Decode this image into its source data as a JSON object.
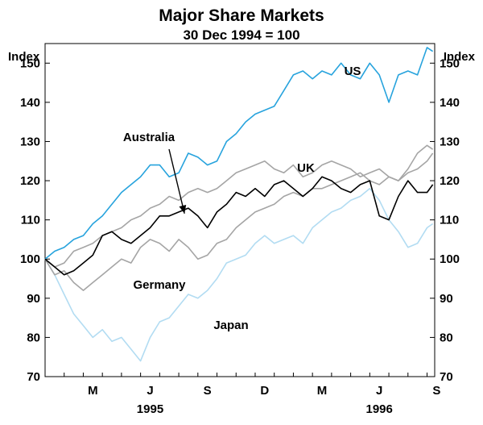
{
  "chart_data": {
    "type": "line",
    "title": "Major Share Markets",
    "subtitle": "30 Dec 1994 = 100",
    "ylabel_left": "Index",
    "ylabel_right": "Index",
    "ylim": [
      70,
      155
    ],
    "yticks": [
      70,
      80,
      90,
      100,
      110,
      120,
      130,
      140,
      150
    ],
    "xlim": [
      0,
      20.4
    ],
    "x_unit": "months since 1 Jan 1995",
    "month_ticks": [
      "M",
      "J",
      "S",
      "D",
      "M",
      "J",
      "S"
    ],
    "month_tick_positions": [
      2.5,
      5.5,
      8.5,
      11.5,
      14.5,
      17.5,
      20.5
    ],
    "year_labels": [
      {
        "label": "1995",
        "x": 5.5
      },
      {
        "label": "1996",
        "x": 17.5
      }
    ],
    "colors": {
      "US": "#27a3dd",
      "Australia": "#000000",
      "UK": "#a5a5a5",
      "Germany": "#a5a5a5",
      "Japan": "#b2dcf2",
      "axis": "#000000"
    },
    "series": [
      {
        "name": "US",
        "label": "US",
        "x": [
          0,
          0.5,
          1,
          1.5,
          2,
          2.5,
          3,
          3.5,
          4,
          4.5,
          5,
          5.5,
          6,
          6.5,
          7,
          7.5,
          8,
          8.5,
          9,
          9.5,
          10,
          10.5,
          11,
          11.5,
          12,
          12.5,
          13,
          13.5,
          14,
          14.5,
          15,
          15.5,
          16,
          16.5,
          17,
          17.5,
          18,
          18.5,
          19,
          19.5,
          20,
          20.3
        ],
        "values": [
          100,
          102,
          103,
          105,
          106,
          109,
          111,
          114,
          117,
          119,
          121,
          124,
          124,
          121,
          122,
          127,
          126,
          124,
          125,
          130,
          132,
          135,
          137,
          138,
          139,
          143,
          147,
          148,
          146,
          148,
          147,
          150,
          147,
          146,
          150,
          147,
          140,
          147,
          148,
          147,
          154,
          153
        ]
      },
      {
        "name": "UK",
        "label": "UK",
        "x": [
          0,
          0.5,
          1,
          1.5,
          2,
          2.5,
          3,
          3.5,
          4,
          4.5,
          5,
          5.5,
          6,
          6.5,
          7,
          7.5,
          8,
          8.5,
          9,
          9.5,
          10,
          10.5,
          11,
          11.5,
          12,
          12.5,
          13,
          13.5,
          14,
          14.5,
          15,
          15.5,
          16,
          16.5,
          17,
          17.5,
          18,
          18.5,
          19,
          19.5,
          20,
          20.3
        ],
        "values": [
          100,
          98,
          99,
          102,
          103,
          104,
          106,
          107,
          108,
          110,
          111,
          113,
          114,
          116,
          115,
          117,
          118,
          117,
          118,
          120,
          122,
          123,
          124,
          125,
          123,
          122,
          124,
          121,
          122,
          124,
          125,
          124,
          123,
          121,
          122,
          123,
          121,
          120,
          123,
          127,
          129,
          128
        ]
      },
      {
        "name": "Australia",
        "label": "Australia",
        "x": [
          0,
          0.5,
          1,
          1.5,
          2,
          2.5,
          3,
          3.5,
          4,
          4.5,
          5,
          5.5,
          6,
          6.5,
          7,
          7.5,
          8,
          8.5,
          9,
          9.5,
          10,
          10.5,
          11,
          11.5,
          12,
          12.5,
          13,
          13.5,
          14,
          14.5,
          15,
          15.5,
          16,
          16.5,
          17,
          17.5,
          18,
          18.5,
          19,
          19.5,
          20,
          20.3
        ],
        "values": [
          100,
          98,
          96,
          97,
          99,
          101,
          106,
          107,
          105,
          104,
          106,
          108,
          111,
          111,
          112,
          113,
          111,
          108,
          112,
          114,
          117,
          116,
          118,
          116,
          119,
          120,
          118,
          116,
          118,
          121,
          120,
          118,
          117,
          119,
          120,
          111,
          110,
          116,
          120,
          117,
          117,
          119
        ]
      },
      {
        "name": "Germany",
        "label": "Germany",
        "x": [
          0,
          0.5,
          1,
          1.5,
          2,
          2.5,
          3,
          3.5,
          4,
          4.5,
          5,
          5.5,
          6,
          6.5,
          7,
          7.5,
          8,
          8.5,
          9,
          9.5,
          10,
          10.5,
          11,
          11.5,
          12,
          12.5,
          13,
          13.5,
          14,
          14.5,
          15,
          15.5,
          16,
          16.5,
          17,
          17.5,
          18,
          18.5,
          19,
          19.5,
          20,
          20.3
        ],
        "values": [
          100,
          96,
          97,
          94,
          92,
          94,
          96,
          98,
          100,
          99,
          103,
          105,
          104,
          102,
          105,
          103,
          100,
          101,
          104,
          105,
          108,
          110,
          112,
          113,
          114,
          116,
          117,
          116,
          118,
          118,
          119,
          120,
          121,
          122,
          120,
          119,
          121,
          120,
          122,
          123,
          125,
          127
        ]
      },
      {
        "name": "Japan",
        "label": "Japan",
        "x": [
          0,
          0.5,
          1,
          1.5,
          2,
          2.5,
          3,
          3.5,
          4,
          4.5,
          5,
          5.5,
          6,
          6.5,
          7,
          7.5,
          8,
          8.5,
          9,
          9.5,
          10,
          10.5,
          11,
          11.5,
          12,
          12.5,
          13,
          13.5,
          14,
          14.5,
          15,
          15.5,
          16,
          16.5,
          17,
          17.5,
          18,
          18.5,
          19,
          19.5,
          20,
          20.3
        ],
        "values": [
          100,
          96,
          91,
          86,
          83,
          80,
          82,
          79,
          80,
          77,
          74,
          80,
          84,
          85,
          88,
          91,
          90,
          92,
          95,
          99,
          100,
          101,
          104,
          106,
          104,
          105,
          106,
          104,
          108,
          110,
          112,
          113,
          115,
          116,
          118,
          115,
          110,
          107,
          103,
          104,
          108,
          109
        ]
      }
    ],
    "annotations": [
      {
        "text": "US",
        "series": "US"
      },
      {
        "text": "Australia",
        "series": "Australia",
        "arrow_to": {
          "x": 7.3,
          "y": 111
        }
      },
      {
        "text": "UK",
        "series": "UK"
      },
      {
        "text": "Germany",
        "series": "Germany"
      },
      {
        "text": "Japan",
        "series": "Japan"
      }
    ]
  }
}
